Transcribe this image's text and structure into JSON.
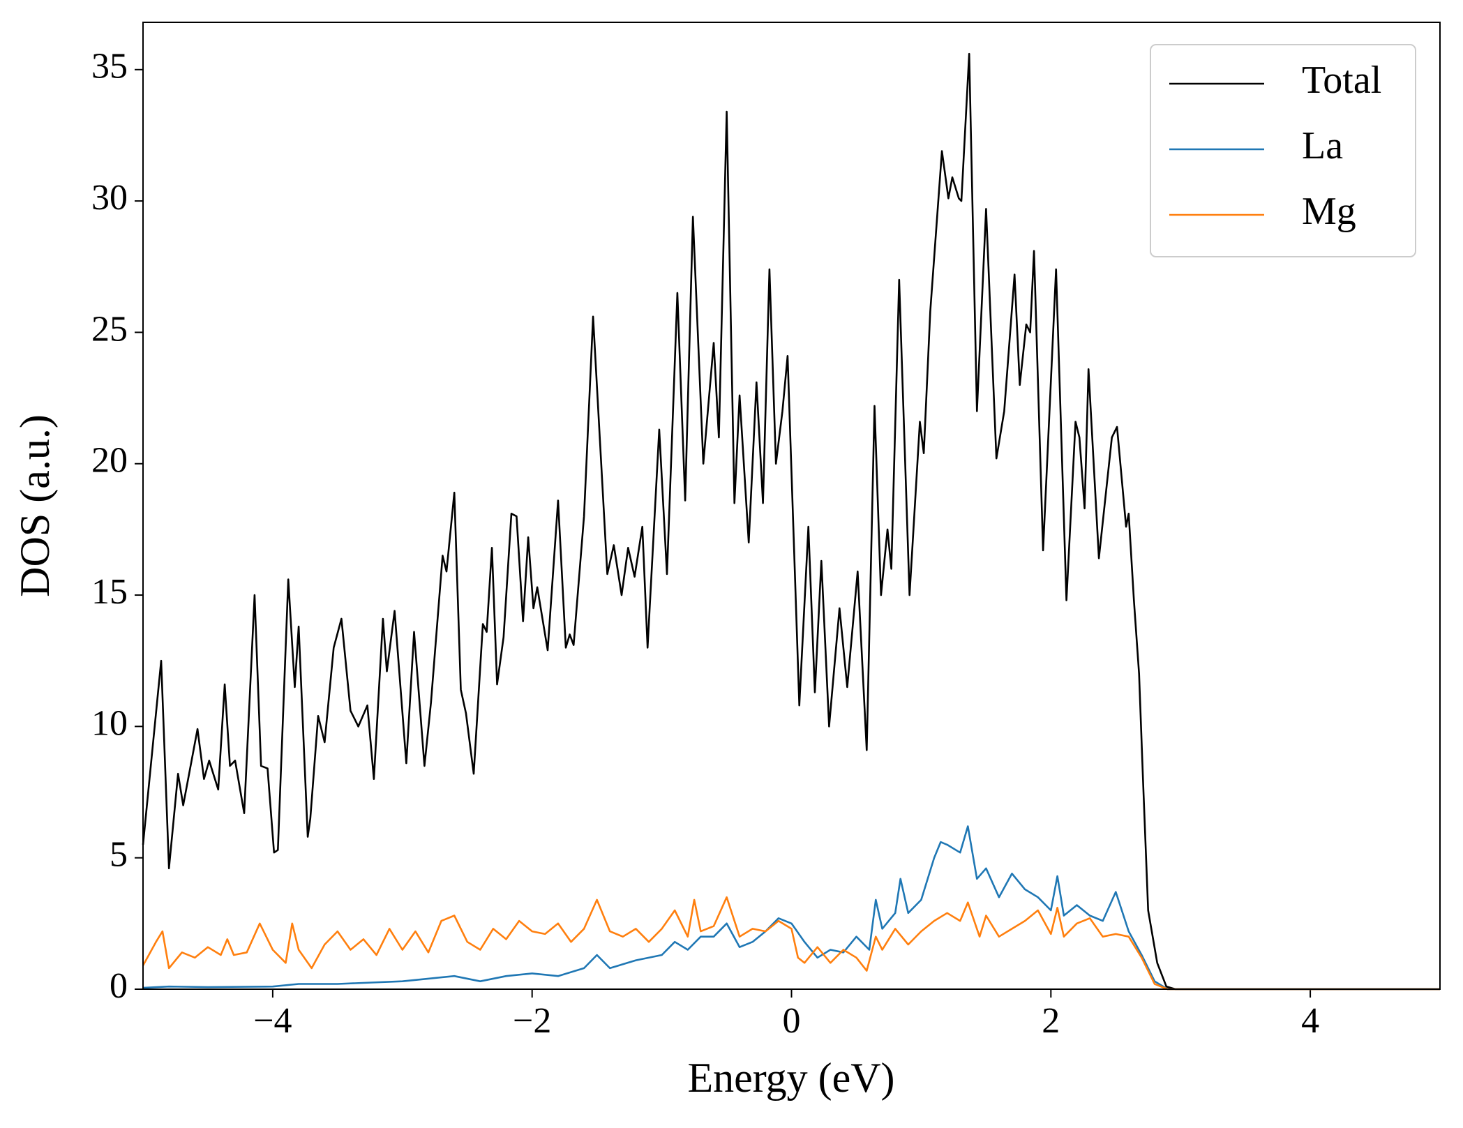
{
  "chart_data": {
    "type": "line",
    "xlabel": "Energy (eV)",
    "ylabel": "DOS (a.u.)",
    "xlim": [
      -5,
      5
    ],
    "ylim": [
      0,
      36.8
    ],
    "xticks": [
      {
        "value": -4,
        "label": "−4"
      },
      {
        "value": -2,
        "label": "−2"
      },
      0,
      2,
      4
    ],
    "yticks": [
      0,
      5,
      10,
      15,
      20,
      25,
      30,
      35
    ],
    "legend": "upper right",
    "series": [
      {
        "name": "Total",
        "color": "#000000",
        "x": [
          -5.0,
          -4.86,
          -4.8,
          -4.73,
          -4.69,
          -4.58,
          -4.53,
          -4.49,
          -4.42,
          -4.37,
          -4.33,
          -4.29,
          -4.22,
          -4.14,
          -4.09,
          -4.04,
          -3.99,
          -3.96,
          -3.88,
          -3.83,
          -3.8,
          -3.73,
          -3.71,
          -3.65,
          -3.6,
          -3.53,
          -3.47,
          -3.4,
          -3.34,
          -3.27,
          -3.22,
          -3.15,
          -3.12,
          -3.06,
          -2.97,
          -2.91,
          -2.83,
          -2.78,
          -2.69,
          -2.66,
          -2.6,
          -2.55,
          -2.51,
          -2.45,
          -2.38,
          -2.35,
          -2.31,
          -2.27,
          -2.22,
          -2.16,
          -2.12,
          -2.07,
          -2.03,
          -1.99,
          -1.96,
          -1.88,
          -1.8,
          -1.74,
          -1.71,
          -1.68,
          -1.6,
          -1.53,
          -1.42,
          -1.37,
          -1.31,
          -1.26,
          -1.21,
          -1.15,
          -1.11,
          -1.02,
          -0.96,
          -0.88,
          -0.82,
          -0.76,
          -0.68,
          -0.6,
          -0.56,
          -0.5,
          -0.44,
          -0.4,
          -0.33,
          -0.27,
          -0.22,
          -0.17,
          -0.12,
          -0.07,
          -0.03,
          0.06,
          0.13,
          0.18,
          0.23,
          0.29,
          0.37,
          0.43,
          0.51,
          0.58,
          0.64,
          0.69,
          0.74,
          0.77,
          0.83,
          0.91,
          0.99,
          1.02,
          1.07,
          1.16,
          1.21,
          1.24,
          1.29,
          1.31,
          1.37,
          1.43,
          1.5,
          1.58,
          1.64,
          1.72,
          1.76,
          1.81,
          1.84,
          1.87,
          1.94,
          2.04,
          2.12,
          2.19,
          2.22,
          2.26,
          2.29,
          2.37,
          2.47,
          2.51,
          2.58,
          2.6,
          2.64,
          2.68,
          2.71,
          2.75,
          2.82,
          2.89,
          2.96,
          5.0
        ],
        "values": [
          5.5,
          12.5,
          4.6,
          8.2,
          7.0,
          9.9,
          8.0,
          8.7,
          7.6,
          11.6,
          8.5,
          8.7,
          6.7,
          15.0,
          8.5,
          8.4,
          5.2,
          5.3,
          15.6,
          11.5,
          13.8,
          5.8,
          6.5,
          10.4,
          9.4,
          13.0,
          14.1,
          10.6,
          10.0,
          10.8,
          8.0,
          14.1,
          12.1,
          14.4,
          8.6,
          13.6,
          8.5,
          10.9,
          16.5,
          15.9,
          18.9,
          11.4,
          10.5,
          8.2,
          13.9,
          13.6,
          16.8,
          11.6,
          13.4,
          18.1,
          18.0,
          14.0,
          17.2,
          14.5,
          15.3,
          12.9,
          18.6,
          13.0,
          13.5,
          13.1,
          18.0,
          25.6,
          15.8,
          16.9,
          15.0,
          16.8,
          15.7,
          17.6,
          13.0,
          21.3,
          15.8,
          26.5,
          18.6,
          29.4,
          20.0,
          24.6,
          21.0,
          33.4,
          18.5,
          22.6,
          17.0,
          23.1,
          18.5,
          27.4,
          20.0,
          22.0,
          24.1,
          10.8,
          17.6,
          11.3,
          16.3,
          10.0,
          14.5,
          11.5,
          15.9,
          9.1,
          22.2,
          15.0,
          17.5,
          16.0,
          27.0,
          15.0,
          21.6,
          20.4,
          25.8,
          31.9,
          30.1,
          30.9,
          30.1,
          30.0,
          35.6,
          22.0,
          29.7,
          20.2,
          22.0,
          27.2,
          23.0,
          25.3,
          25.0,
          28.1,
          16.7,
          27.4,
          14.8,
          21.6,
          21.0,
          18.3,
          23.6,
          16.4,
          21.0,
          21.4,
          17.6,
          18.1,
          14.8,
          12.0,
          8.0,
          3.0,
          1.0,
          0.1,
          0,
          0
        ]
      },
      {
        "name": "La",
        "color": "#1f77b4",
        "x": [
          -5,
          -4.8,
          -4.5,
          -4,
          -3.8,
          -3.5,
          -3,
          -2.8,
          -2.6,
          -2.4,
          -2.2,
          -2.0,
          -1.8,
          -1.6,
          -1.5,
          -1.4,
          -1.2,
          -1.0,
          -0.9,
          -0.8,
          -0.7,
          -0.6,
          -0.5,
          -0.4,
          -0.3,
          -0.2,
          -0.1,
          0,
          0.1,
          0.2,
          0.3,
          0.4,
          0.5,
          0.6,
          0.65,
          0.7,
          0.8,
          0.84,
          0.9,
          1.0,
          1.1,
          1.15,
          1.2,
          1.3,
          1.36,
          1.43,
          1.5,
          1.6,
          1.7,
          1.8,
          1.9,
          2.0,
          2.05,
          2.1,
          2.2,
          2.3,
          2.4,
          2.5,
          2.6,
          2.7,
          2.8,
          2.9,
          5
        ],
        "values": [
          0.05,
          0.1,
          0.08,
          0.1,
          0.2,
          0.2,
          0.3,
          0.4,
          0.5,
          0.3,
          0.5,
          0.6,
          0.5,
          0.8,
          1.3,
          0.8,
          1.1,
          1.3,
          1.8,
          1.5,
          2.0,
          2.0,
          2.5,
          1.6,
          1.8,
          2.2,
          2.7,
          2.5,
          1.8,
          1.2,
          1.5,
          1.4,
          2.0,
          1.5,
          3.4,
          2.3,
          2.9,
          4.2,
          2.9,
          3.4,
          5.0,
          5.6,
          5.5,
          5.2,
          6.2,
          4.2,
          4.6,
          3.5,
          4.4,
          3.8,
          3.5,
          3.0,
          4.3,
          2.8,
          3.2,
          2.8,
          2.6,
          3.7,
          2.2,
          1.3,
          0.3,
          0,
          0
        ]
      },
      {
        "name": "Mg",
        "color": "#ff7f0e",
        "x": [
          -5,
          -4.9,
          -4.85,
          -4.8,
          -4.7,
          -4.6,
          -4.5,
          -4.4,
          -4.35,
          -4.3,
          -4.2,
          -4.1,
          -4.0,
          -3.9,
          -3.85,
          -3.8,
          -3.7,
          -3.6,
          -3.5,
          -3.4,
          -3.3,
          -3.2,
          -3.1,
          -3.0,
          -2.9,
          -2.8,
          -2.7,
          -2.6,
          -2.5,
          -2.4,
          -2.3,
          -2.2,
          -2.1,
          -2.0,
          -1.9,
          -1.8,
          -1.7,
          -1.6,
          -1.5,
          -1.4,
          -1.3,
          -1.2,
          -1.1,
          -1.0,
          -0.9,
          -0.8,
          -0.75,
          -0.7,
          -0.6,
          -0.5,
          -0.4,
          -0.3,
          -0.2,
          -0.1,
          0,
          0.05,
          0.1,
          0.2,
          0.3,
          0.4,
          0.5,
          0.58,
          0.65,
          0.7,
          0.8,
          0.9,
          1.0,
          1.1,
          1.2,
          1.3,
          1.36,
          1.45,
          1.5,
          1.6,
          1.7,
          1.8,
          1.9,
          2.0,
          2.05,
          2.1,
          2.2,
          2.3,
          2.4,
          2.5,
          2.6,
          2.7,
          2.8,
          2.9,
          5
        ],
        "values": [
          0.9,
          1.8,
          2.2,
          0.8,
          1.4,
          1.2,
          1.6,
          1.3,
          1.9,
          1.3,
          1.4,
          2.5,
          1.5,
          1.0,
          2.5,
          1.5,
          0.8,
          1.7,
          2.2,
          1.5,
          1.9,
          1.3,
          2.3,
          1.5,
          2.2,
          1.4,
          2.6,
          2.8,
          1.8,
          1.5,
          2.3,
          1.9,
          2.6,
          2.2,
          2.1,
          2.5,
          1.8,
          2.3,
          3.4,
          2.2,
          2.0,
          2.3,
          1.8,
          2.3,
          3.0,
          2.0,
          3.4,
          2.2,
          2.4,
          3.5,
          2.0,
          2.3,
          2.2,
          2.6,
          2.3,
          1.2,
          1.0,
          1.6,
          1.0,
          1.5,
          1.2,
          0.7,
          2.0,
          1.5,
          2.3,
          1.7,
          2.2,
          2.6,
          2.9,
          2.6,
          3.3,
          2.0,
          2.8,
          2.0,
          2.3,
          2.6,
          3.0,
          2.1,
          3.1,
          2.0,
          2.5,
          2.7,
          2.0,
          2.1,
          2.0,
          1.2,
          0.2,
          0,
          0
        ]
      }
    ]
  }
}
